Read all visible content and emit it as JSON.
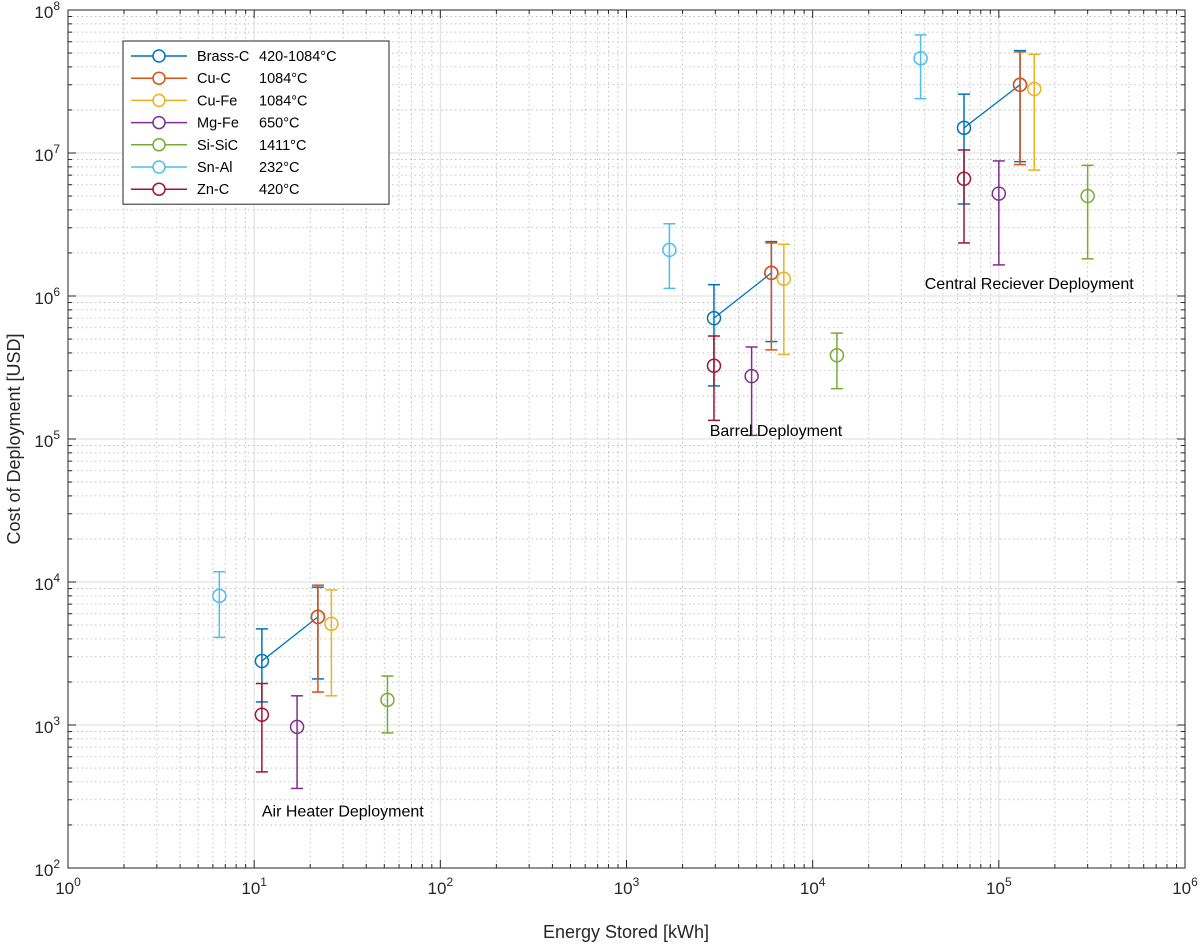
{
  "chart_data": {
    "type": "scatter",
    "xlabel": "Energy Stored [kWh]",
    "ylabel": "Cost of Deployment [USD]",
    "xscale": "log",
    "yscale": "log",
    "xlim": [
      1,
      1000000
    ],
    "ylim": [
      100,
      100000000
    ],
    "x_ticks": [
      {
        "base": "10",
        "exp": "0",
        "value": 1
      },
      {
        "base": "10",
        "exp": "1",
        "value": 10
      },
      {
        "base": "10",
        "exp": "2",
        "value": 100
      },
      {
        "base": "10",
        "exp": "3",
        "value": 1000
      },
      {
        "base": "10",
        "exp": "4",
        "value": 10000
      },
      {
        "base": "10",
        "exp": "5",
        "value": 100000
      },
      {
        "base": "10",
        "exp": "6",
        "value": 1000000
      }
    ],
    "y_ticks": [
      {
        "base": "10",
        "exp": "2",
        "value": 100
      },
      {
        "base": "10",
        "exp": "3",
        "value": 1000
      },
      {
        "base": "10",
        "exp": "4",
        "value": 10000
      },
      {
        "base": "10",
        "exp": "5",
        "value": 100000
      },
      {
        "base": "10",
        "exp": "6",
        "value": 1000000
      },
      {
        "base": "10",
        "exp": "7",
        "value": 10000000
      },
      {
        "base": "10",
        "exp": "8",
        "value": 100000000
      }
    ],
    "grid": true,
    "minor_grid": true,
    "legend_position": "top-left",
    "annotations": [
      {
        "text": "Air Heater Deployment",
        "x": 11,
        "y": 230
      },
      {
        "text": "Barrel Deployment",
        "x": 2800,
        "y": 105000
      },
      {
        "text": "Central Reciever Deployment",
        "x": 40000,
        "y": 1120000
      }
    ],
    "series": [
      {
        "name": "Brass-C",
        "temp": "420-1084°C",
        "color": "#0072BD",
        "line": true,
        "points": [
          {
            "x": 11,
            "y": 2800,
            "lo": 1450,
            "hi": 4700
          },
          {
            "x": 22,
            "y": 5700,
            "lo": 2100,
            "hi": 9200
          },
          {
            "x": 2950,
            "y": 700000,
            "lo": 235000,
            "hi": 1200000
          },
          {
            "x": 6000,
            "y": 1450000,
            "lo": 480000,
            "hi": 2400000
          },
          {
            "x": 65000,
            "y": 15000000,
            "lo": 4400000,
            "hi": 25800000
          },
          {
            "x": 130000,
            "y": 30000000,
            "lo": 8700000,
            "hi": 52000000
          }
        ]
      },
      {
        "name": "Cu-C",
        "temp": "1084°C",
        "color": "#D95319",
        "line": false,
        "points": [
          {
            "x": 22,
            "y": 5700,
            "lo": 1700,
            "hi": 9500
          },
          {
            "x": 6000,
            "y": 1450000,
            "lo": 420000,
            "hi": 2350000
          },
          {
            "x": 130000,
            "y": 30000000,
            "lo": 8300000,
            "hi": 51000000
          }
        ]
      },
      {
        "name": "Cu-Fe",
        "temp": "1084°C",
        "color": "#EDB120",
        "line": false,
        "points": [
          {
            "x": 26,
            "y": 5100,
            "lo": 1600,
            "hi": 8800
          },
          {
            "x": 7000,
            "y": 1320000,
            "lo": 390000,
            "hi": 2300000
          },
          {
            "x": 155000,
            "y": 28000000,
            "lo": 7600000,
            "hi": 49000000
          }
        ]
      },
      {
        "name": "Mg-Fe",
        "temp": "650°C",
        "color": "#7E2F8E",
        "line": false,
        "points": [
          {
            "x": 17,
            "y": 970,
            "lo": 360,
            "hi": 1600
          },
          {
            "x": 4700,
            "y": 275000,
            "lo": 106000,
            "hi": 440000
          },
          {
            "x": 100000,
            "y": 5200000,
            "lo": 1650000,
            "hi": 8800000
          }
        ]
      },
      {
        "name": "Si-SiC",
        "temp": "1411°C",
        "color": "#77AC30",
        "line": false,
        "points": [
          {
            "x": 52,
            "y": 1500,
            "lo": 880,
            "hi": 2200
          },
          {
            "x": 13500,
            "y": 385000,
            "lo": 225000,
            "hi": 550000
          },
          {
            "x": 300000,
            "y": 5000000,
            "lo": 1820000,
            "hi": 8200000
          }
        ]
      },
      {
        "name": "Sn-Al",
        "temp": "232°C",
        "color": "#4DBEEE",
        "line": false,
        "points": [
          {
            "x": 6.5,
            "y": 8000,
            "lo": 4100,
            "hi": 11800
          },
          {
            "x": 1700,
            "y": 2100000,
            "lo": 1130000,
            "hi": 3200000
          },
          {
            "x": 38000,
            "y": 46000000,
            "lo": 24000000,
            "hi": 67000000
          }
        ]
      },
      {
        "name": "Zn-C",
        "temp": "420°C",
        "color": "#A2142F",
        "line": false,
        "points": [
          {
            "x": 11,
            "y": 1180,
            "lo": 470,
            "hi": 1950
          },
          {
            "x": 2950,
            "y": 325000,
            "lo": 135000,
            "hi": 525000
          },
          {
            "x": 65000,
            "y": 6600000,
            "lo": 2350000,
            "hi": 10500000
          }
        ]
      }
    ]
  }
}
